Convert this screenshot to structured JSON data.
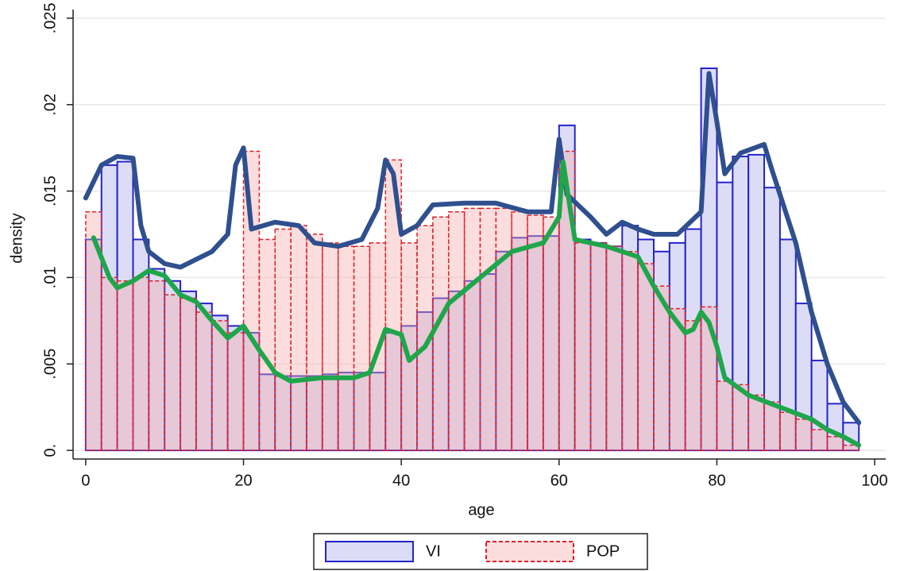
{
  "chart_data": {
    "type": "histogram",
    "x_label": "age",
    "y_label": "density",
    "bins": [
      0,
      2,
      4,
      6,
      8,
      10,
      12,
      14,
      16,
      18,
      20,
      22,
      24,
      26,
      28,
      30,
      32,
      34,
      36,
      38,
      40,
      42,
      44,
      46,
      48,
      50,
      52,
      54,
      56,
      58,
      60,
      62,
      64,
      66,
      68,
      70,
      72,
      74,
      76,
      78,
      80,
      82,
      84,
      86,
      88,
      90,
      92,
      94,
      96,
      98
    ],
    "series": [
      {
        "name": "VI",
        "color": "#2424c8",
        "fill": "#dcdcf6",
        "dashed": false,
        "values": [
          0.0122,
          0.0165,
          0.0167,
          0.0122,
          0.0105,
          0.0098,
          0.0092,
          0.0085,
          0.0078,
          0.0072,
          0.0068,
          0.0044,
          0.0043,
          0.0043,
          0.0043,
          0.0044,
          0.0045,
          0.0045,
          0.0045,
          0.0068,
          0.0072,
          0.008,
          0.0088,
          0.0092,
          0.0098,
          0.0102,
          0.0115,
          0.0123,
          0.0124,
          0.0124,
          0.0188,
          0.0122,
          0.012,
          0.0118,
          0.013,
          0.0122,
          0.0115,
          0.012,
          0.0128,
          0.0221,
          0.0155,
          0.017,
          0.0171,
          0.0152,
          0.0122,
          0.0085,
          0.0052,
          0.0027,
          0.0016
        ]
      },
      {
        "name": "POP",
        "color": "#e0202a",
        "fill": "rgba(246,170,170,0.4)",
        "dashed": true,
        "values": [
          0.0138,
          0.01,
          0.0098,
          0.01,
          0.0098,
          0.009,
          0.0088,
          0.008,
          0.0075,
          0.0068,
          0.0173,
          0.0122,
          0.0128,
          0.013,
          0.0125,
          0.012,
          0.0118,
          0.0118,
          0.012,
          0.0168,
          0.012,
          0.013,
          0.0135,
          0.0138,
          0.014,
          0.014,
          0.014,
          0.0138,
          0.0136,
          0.0135,
          0.0173,
          0.012,
          0.012,
          0.0118,
          0.0115,
          0.0108,
          0.0095,
          0.0082,
          0.0075,
          0.0083,
          0.004,
          0.0038,
          0.0032,
          0.0028,
          0.0022,
          0.0018,
          0.0012,
          0.0008,
          0.0003
        ]
      }
    ],
    "lines": [
      {
        "color": "#2f4f8f",
        "x": [
          0,
          2,
          4,
          6,
          7,
          8,
          10,
          12,
          16,
          18,
          19,
          20,
          21,
          24,
          27,
          29,
          32,
          35,
          37,
          38,
          39,
          40,
          42,
          44,
          48,
          52,
          56,
          59,
          60,
          61,
          64,
          66,
          68,
          70,
          72,
          75,
          78,
          79,
          80,
          81,
          83,
          86,
          87,
          90,
          92,
          94,
          96,
          98
        ],
        "values": [
          0.0146,
          0.0165,
          0.017,
          0.0169,
          0.013,
          0.0115,
          0.0108,
          0.0106,
          0.0115,
          0.0125,
          0.0165,
          0.0175,
          0.0128,
          0.0132,
          0.013,
          0.012,
          0.0118,
          0.0122,
          0.014,
          0.0168,
          0.016,
          0.0125,
          0.013,
          0.0142,
          0.0143,
          0.0143,
          0.0138,
          0.0138,
          0.018,
          0.0148,
          0.0135,
          0.0125,
          0.0132,
          0.0128,
          0.0125,
          0.0125,
          0.0138,
          0.0218,
          0.019,
          0.016,
          0.0172,
          0.0177,
          0.0162,
          0.012,
          0.008,
          0.005,
          0.0028,
          0.0016
        ]
      },
      {
        "color": "#1fa64a",
        "x": [
          1,
          3,
          4,
          6,
          8,
          10,
          12,
          14,
          16,
          18,
          20,
          22,
          24,
          26,
          30,
          34,
          36,
          38,
          40,
          41,
          43,
          46,
          50,
          54,
          58,
          60,
          60.5,
          62,
          66,
          70,
          72,
          74,
          76,
          77,
          78,
          79,
          80,
          81,
          84,
          88,
          92,
          94,
          96,
          98
        ],
        "values": [
          0.0123,
          0.01,
          0.0094,
          0.0098,
          0.0104,
          0.0101,
          0.009,
          0.0086,
          0.0075,
          0.0065,
          0.0072,
          0.0058,
          0.0045,
          0.004,
          0.0042,
          0.0042,
          0.0045,
          0.007,
          0.0067,
          0.0052,
          0.006,
          0.0085,
          0.01,
          0.0115,
          0.012,
          0.0135,
          0.0167,
          0.0122,
          0.0118,
          0.0112,
          0.0095,
          0.008,
          0.0068,
          0.007,
          0.008,
          0.0074,
          0.006,
          0.0042,
          0.0032,
          0.0025,
          0.0018,
          0.0012,
          0.0008,
          0.0003
        ]
      }
    ],
    "xlim": [
      -1.6,
      101.4
    ],
    "ylim": [
      -0.0005,
      0.0255
    ],
    "xticks": [
      0,
      20,
      40,
      60,
      80,
      100
    ],
    "yticks": [
      {
        "value": 0,
        "label": "0."
      },
      {
        "value": 0.005,
        "label": ".005"
      },
      {
        "value": 0.01,
        "label": ".01"
      },
      {
        "value": 0.015,
        "label": ".015"
      },
      {
        "value": 0.02,
        "label": ".02"
      },
      {
        "value": 0.025,
        "label": ".025"
      }
    ],
    "grid": true
  }
}
